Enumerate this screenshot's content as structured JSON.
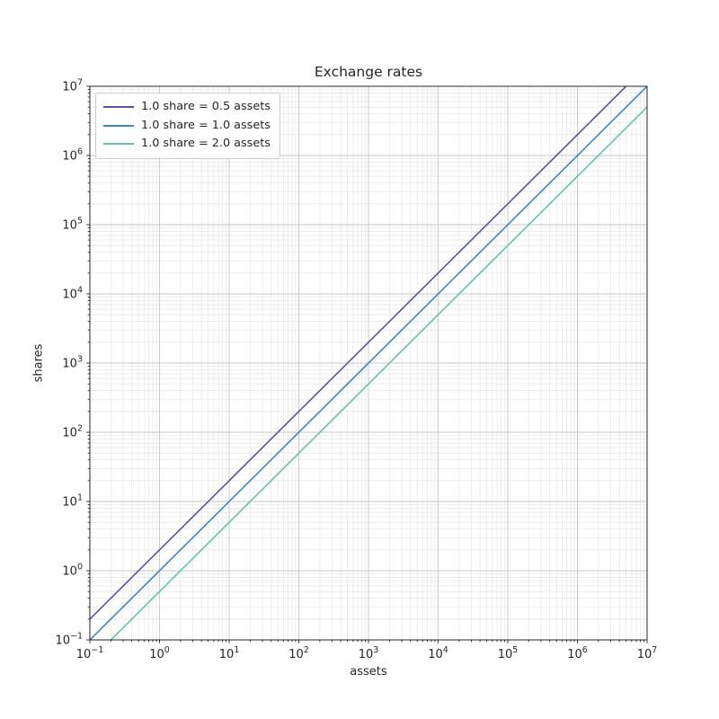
{
  "chart_data": {
    "type": "line",
    "title": "Exchange rates",
    "xlabel": "assets",
    "ylabel": "shares",
    "xscale": "log",
    "yscale": "log",
    "xlim": [
      0.1,
      10000000
    ],
    "ylim": [
      0.1,
      10000000
    ],
    "x_tick_exponents": [
      -1,
      0,
      1,
      2,
      3,
      4,
      5,
      6,
      7
    ],
    "y_tick_exponents": [
      -1,
      0,
      1,
      2,
      3,
      4,
      5,
      6,
      7
    ],
    "grid": "major+minor",
    "legend_position": "upper-left",
    "x": [
      0.1,
      1,
      10,
      100,
      1000,
      10000,
      100000,
      1000000,
      10000000
    ],
    "series": [
      {
        "name": "1.0 share = 0.5 assets",
        "assets_per_share": 0.5,
        "color": "#5a52a5",
        "values": [
          0.2,
          2,
          20,
          200,
          2000,
          20000,
          200000,
          2000000,
          20000000
        ]
      },
      {
        "name": "1.0 share = 1.0 assets",
        "assets_per_share": 1.0,
        "color": "#3d87c3",
        "values": [
          0.1,
          1,
          10,
          100,
          1000,
          10000,
          100000,
          1000000,
          10000000
        ]
      },
      {
        "name": "1.0 share = 2.0 assets",
        "assets_per_share": 2.0,
        "color": "#60c79e",
        "values": [
          0.05,
          0.5,
          5,
          50,
          500,
          5000,
          50000,
          500000,
          5000000
        ]
      }
    ],
    "colors": {
      "major_grid": "#c6c6c6",
      "minor_grid": "#e8e8e8",
      "spine": "#262626",
      "text": "#262626",
      "background": "#ffffff"
    }
  }
}
